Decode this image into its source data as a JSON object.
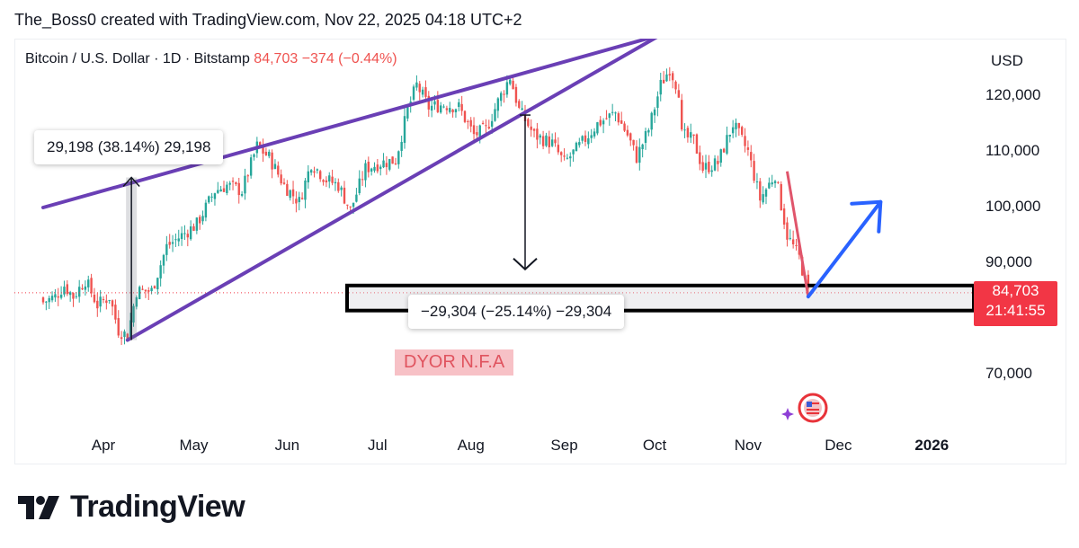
{
  "credit": "The_Boss0 created with TradingView.com, Nov 22, 2025 04:18 UTC+2",
  "ticker": {
    "name": "Bitcoin / U.S. Dollar · 1D · Bitstamp",
    "price": "84,703",
    "change": "−374 (−0.44%)"
  },
  "price_tag": {
    "price": "84,703",
    "countdown": "21:41:55"
  },
  "measure_up": "29,198 (38.14%) 29,198",
  "measure_down": "−29,304 (−25.14%) −29,304",
  "note": "DYOR N.F.A",
  "logo": {
    "wordmark": "TradingView"
  },
  "colors": {
    "up_candle": "#26a69a",
    "down_candle": "#ef5350",
    "trendline": "#6a3fb5",
    "projection_arrow": "#2962ff",
    "price_tag": "#f23645"
  },
  "chart_data": {
    "type": "candlestick",
    "symbol": "Bitcoin / U.S. Dollar",
    "interval": "1D",
    "exchange": "Bitstamp",
    "y_unit": "USD",
    "y_ticks": [
      70000,
      90000,
      100000,
      110000,
      120000
    ],
    "y_tick_labels": [
      "70,000",
      "90,000",
      "100,000",
      "110,000",
      "120,000"
    ],
    "ylim": [
      60000,
      130000
    ],
    "x_ticks": [
      "Apr",
      "May",
      "Jun",
      "Jul",
      "Aug",
      "Sep",
      "Oct",
      "Nov",
      "Dec",
      "2026"
    ],
    "price_path": [
      [
        "Mar 12",
        83000
      ],
      [
        "Mar 16",
        84000
      ],
      [
        "Mar 19",
        86000
      ],
      [
        "Mar 22",
        84000
      ],
      [
        "Mar 26",
        87000
      ],
      [
        "Mar 30",
        82500
      ],
      [
        "Apr 3",
        84000
      ],
      [
        "Apr 6",
        78000
      ],
      [
        "Apr 9",
        77000
      ],
      [
        "Apr 12",
        85000
      ],
      [
        "Apr 17",
        85000
      ],
      [
        "Apr 22",
        93000
      ],
      [
        "Apr 27",
        95000
      ],
      [
        "May 2",
        97000
      ],
      [
        "May 8",
        103000
      ],
      [
        "May 12",
        104000
      ],
      [
        "May 17",
        103000
      ],
      [
        "May 22",
        111000
      ],
      [
        "May 26",
        109000
      ],
      [
        "May 31",
        104000
      ],
      [
        "Jun 5",
        101000
      ],
      [
        "Jun 9",
        108000
      ],
      [
        "Jun 14",
        105000
      ],
      [
        "Jun 18",
        104000
      ],
      [
        "Jun 22",
        99500
      ],
      [
        "Jun 27",
        107000
      ],
      [
        "Jul 2",
        108000
      ],
      [
        "Jul 7",
        108500
      ],
      [
        "Jul 11",
        117500
      ],
      [
        "Jul 14",
        122000
      ],
      [
        "Jul 18",
        118000
      ],
      [
        "Jul 23",
        118500
      ],
      [
        "Jul 28",
        118000
      ],
      [
        "Aug 2",
        113000
      ],
      [
        "Aug 6",
        114000
      ],
      [
        "Aug 10",
        119000
      ],
      [
        "Aug 14",
        123500
      ],
      [
        "Aug 17",
        117500
      ],
      [
        "Aug 22",
        113000
      ],
      [
        "Aug 28",
        111500
      ],
      [
        "Sep 1",
        108000
      ],
      [
        "Sep 6",
        111000
      ],
      [
        "Sep 12",
        115000
      ],
      [
        "Sep 18",
        117000
      ],
      [
        "Sep 22",
        113000
      ],
      [
        "Sep 25",
        109000
      ],
      [
        "Sep 29",
        114000
      ],
      [
        "Oct 3",
        122000
      ],
      [
        "Oct 6",
        125000
      ],
      [
        "Oct 9",
        121000
      ],
      [
        "Oct 10",
        113000
      ],
      [
        "Oct 14",
        112000
      ],
      [
        "Oct 17",
        107000
      ],
      [
        "Oct 22",
        108000
      ],
      [
        "Oct 27",
        115000
      ],
      [
        "Nov 1",
        110000
      ],
      [
        "Nov 5",
        101500
      ],
      [
        "Nov 10",
        106000
      ],
      [
        "Nov 14",
        95000
      ],
      [
        "Nov 18",
        91000
      ],
      [
        "Nov 21",
        84703
      ]
    ],
    "annotations": {
      "measure_up": {
        "from": 76200,
        "to": 105400,
        "change": 29198,
        "percent": 38.14
      },
      "measure_down": {
        "from": 116600,
        "to": 87300,
        "change": -29304,
        "percent": -25.14
      },
      "support_zone": {
        "low": 81500,
        "high": 86000
      },
      "rising_wedge": {
        "upper": [
          [
            "Mar 12",
            100000
          ],
          [
            "Oct 3",
            131000
          ]
        ],
        "lower": [
          [
            "Apr 9",
            76200
          ],
          [
            "Oct 3",
            131000
          ]
        ]
      },
      "projection": [
        [
          "Nov 21",
          84000
        ],
        [
          "Dec 15",
          101000
        ]
      ]
    }
  }
}
